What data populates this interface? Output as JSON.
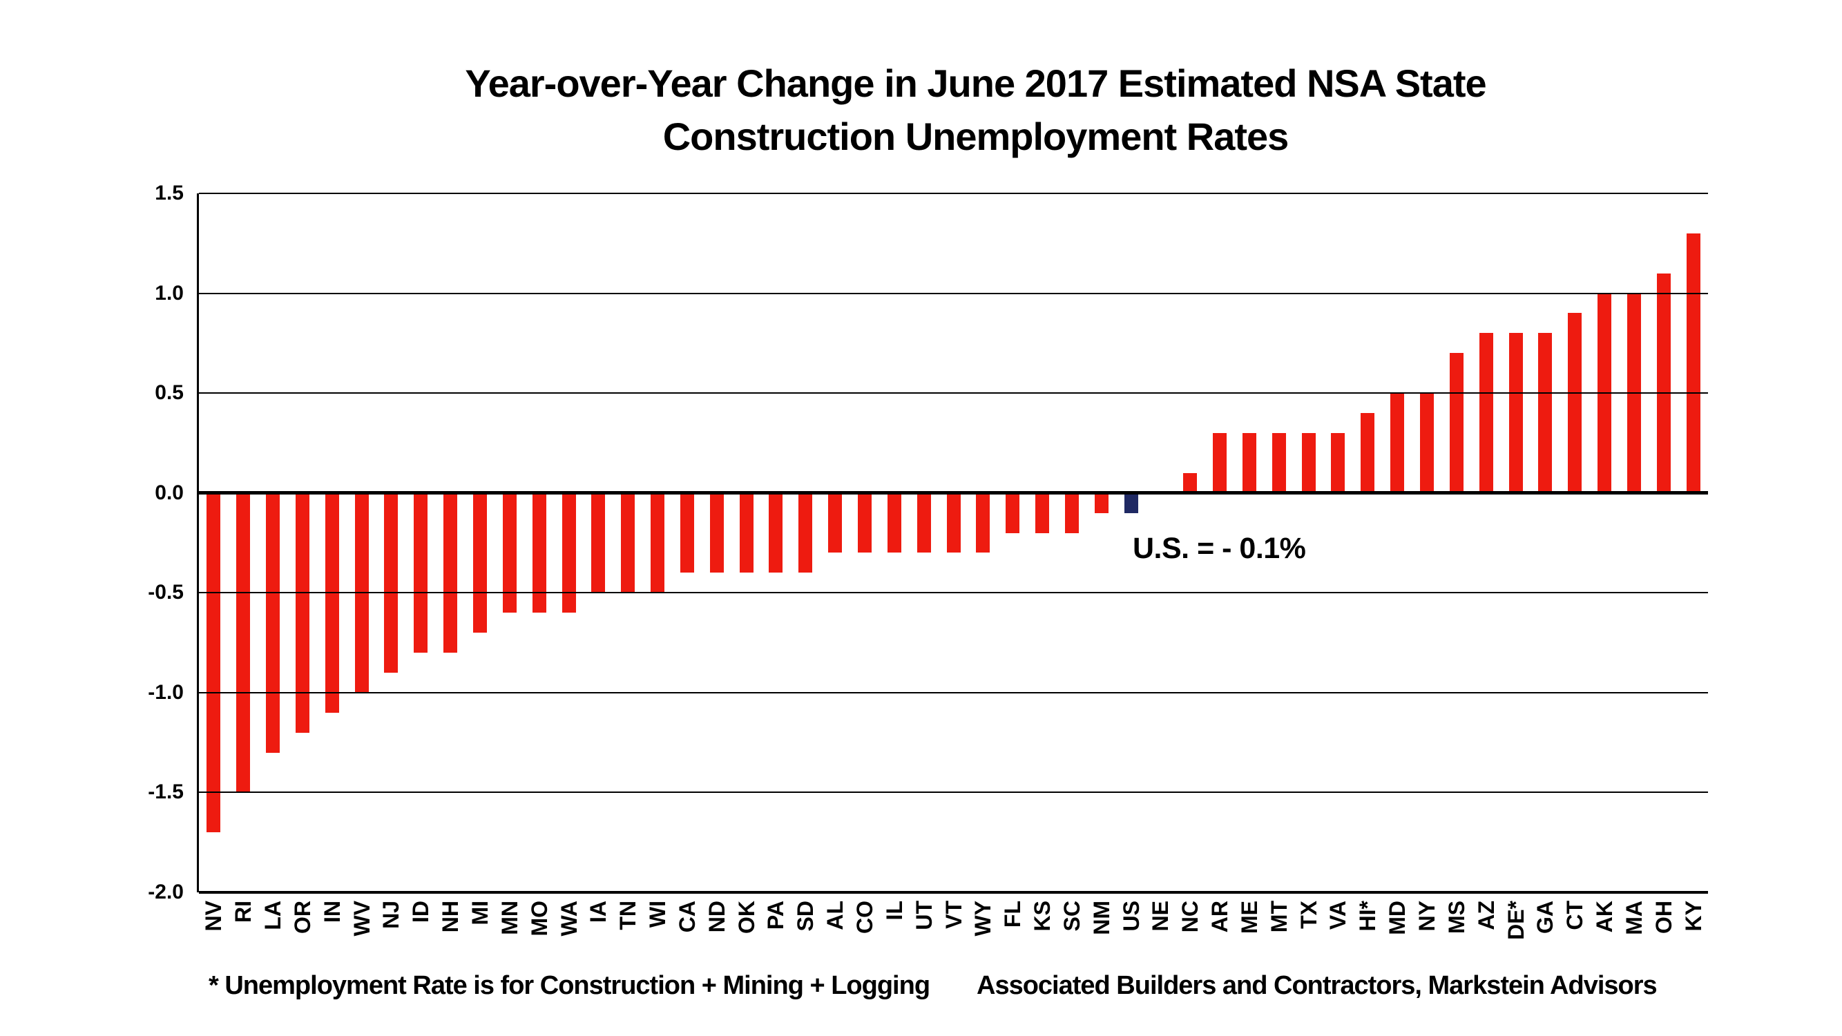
{
  "title": {
    "line1": "Year-over-Year Change in June 2017 Estimated NSA State",
    "line2": "Construction Unemployment Rates"
  },
  "annotation": "U.S. = - 0.1%",
  "footnotes": {
    "left": "* Unemployment Rate is for Construction + Mining + Logging",
    "right": "Associated Builders and Contractors, Markstein Advisors"
  },
  "chart_data": {
    "type": "bar",
    "title": "Year-over-Year Change in June 2017 Estimated NSA State Construction Unemployment Rates",
    "xlabel": "",
    "ylabel": "",
    "ylim": [
      -2.0,
      1.5
    ],
    "grid": true,
    "legend": false,
    "y_ticks": [
      {
        "label": "1.5",
        "value": 1.5
      },
      {
        "label": "1.0",
        "value": 1.0
      },
      {
        "label": "0.5",
        "value": 0.5
      },
      {
        "label": "0.0",
        "value": 0.0
      },
      {
        "label": "-0.5",
        "value": -0.5
      },
      {
        "label": "-1.0",
        "value": -1.0
      },
      {
        "label": "-1.5",
        "value": -1.5
      },
      {
        "label": "-2.0",
        "value": -2.0
      }
    ],
    "categories": [
      "NV",
      "RI",
      "LA",
      "OR",
      "IN",
      "WV",
      "NJ",
      "ID",
      "NH",
      "MI",
      "MN",
      "MO",
      "WA",
      "IA",
      "TN",
      "WI",
      "CA",
      "ND",
      "OK",
      "PA",
      "SD",
      "AL",
      "CO",
      "IL",
      "UT",
      "VT",
      "WY",
      "FL",
      "KS",
      "SC",
      "NM",
      "US",
      "NE",
      "NC",
      "AR",
      "ME",
      "MT",
      "TX",
      "VA",
      "HI*",
      "MD",
      "NY",
      "MS",
      "AZ",
      "DE*",
      "GA",
      "CT",
      "AK",
      "MA",
      "OH",
      "KY"
    ],
    "values": [
      -1.7,
      -1.5,
      -1.3,
      -1.2,
      -1.1,
      -1.0,
      -0.9,
      -0.8,
      -0.8,
      -0.7,
      -0.6,
      -0.6,
      -0.6,
      -0.5,
      -0.5,
      -0.5,
      -0.4,
      -0.4,
      -0.4,
      -0.4,
      -0.4,
      -0.3,
      -0.3,
      -0.3,
      -0.3,
      -0.3,
      -0.3,
      -0.2,
      -0.2,
      -0.2,
      -0.1,
      -0.1,
      0.0,
      0.1,
      0.3,
      0.3,
      0.3,
      0.3,
      0.3,
      0.4,
      0.5,
      0.5,
      0.7,
      0.8,
      0.8,
      0.8,
      0.9,
      1.0,
      1.0,
      1.1,
      1.3
    ],
    "highlight_category": "US",
    "highlight_index": 31,
    "us_annotation": "U.S. = - 0.1%",
    "colors": {
      "bar": "#EE1B10",
      "highlight_bar": "#1F2963",
      "gridline": "#000000",
      "text": "#000000",
      "background": "#FFFFFF"
    }
  }
}
